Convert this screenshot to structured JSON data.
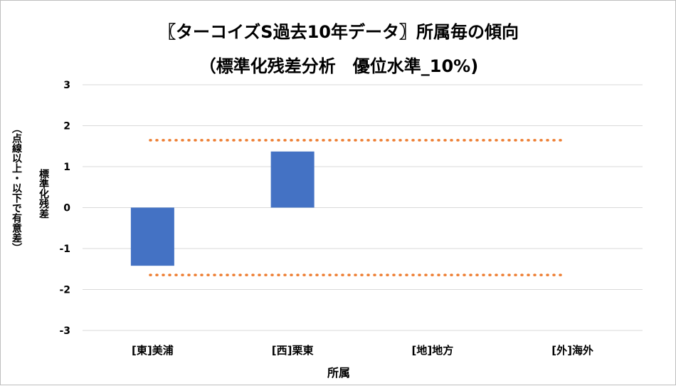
{
  "chart_data": {
    "type": "bar",
    "title_line1": "〖ターコイズS過去10年データ〗所属毎の傾向",
    "title_line2": "（標準化残差分析　優位水準_10%)",
    "ylabel_line1": "標準化残差",
    "ylabel_line2": "（点線以上・以下で有意差）",
    "xlabel": "所属",
    "categories": [
      "[東]美浦",
      "[西]栗東",
      "[地]地方",
      "[外]海外"
    ],
    "values": [
      -1.42,
      1.37,
      null,
      null
    ],
    "ylim": [
      -3,
      3
    ],
    "yticks": [
      3,
      2,
      1,
      0,
      -1,
      -2,
      -3
    ],
    "threshold_lines": [
      1.645,
      -1.645
    ],
    "grid": true,
    "legend": "none",
    "colors": {
      "bar": "#4472c4",
      "threshold": "#ed7d31",
      "grid": "#d9d9d9"
    }
  }
}
